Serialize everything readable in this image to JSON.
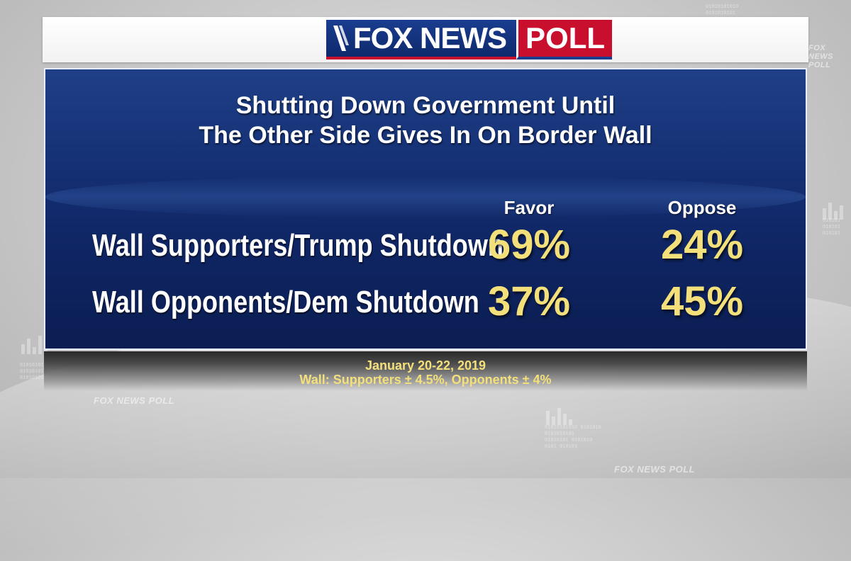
{
  "header": {
    "logo_fox_text": "FOX NEWS",
    "logo_poll_text": "POLL",
    "colors": {
      "fox_blue": "#1a3d8f",
      "poll_red": "#c8102e"
    }
  },
  "poll": {
    "title_line1": "Shutting Down Government Until",
    "title_line2": "The Other Side Gives In On Border Wall",
    "columns": [
      "Favor",
      "Oppose"
    ],
    "rows": [
      {
        "label": "Wall Supporters/Trump Shutdown",
        "favor": "69%",
        "oppose": "24%"
      },
      {
        "label": "Wall Opponents/Dem Shutdown",
        "favor": "37%",
        "oppose": "45%"
      }
    ],
    "value_color": "#f3e07a",
    "panel_color": "#163277"
  },
  "footer": {
    "date": "January 20-22, 2019",
    "margin": "Wall: Supporters ± 4.5%, Opponents ± 4%"
  },
  "background": {
    "watermark": "FOX NEWS POLL"
  }
}
